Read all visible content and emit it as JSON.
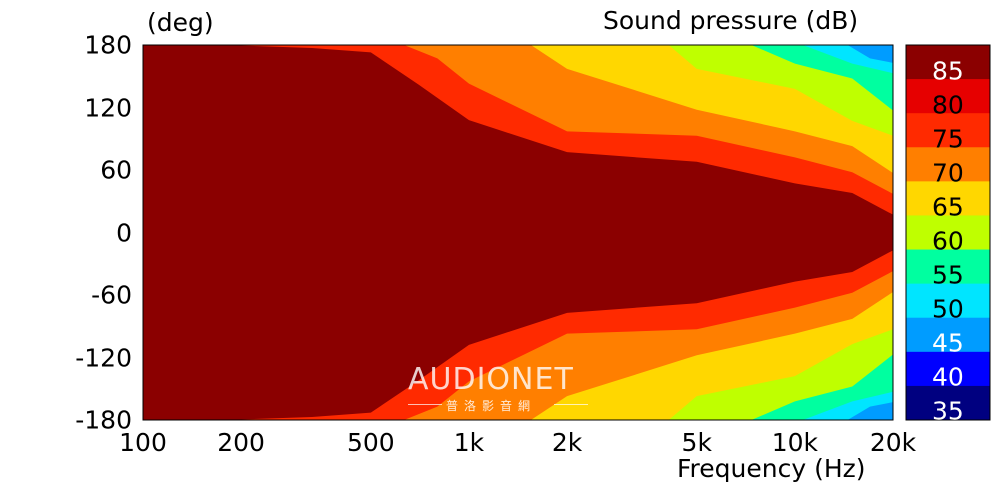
{
  "chart_data": {
    "type": "heatmap",
    "title": "",
    "xlabel": "Frequency  (Hz)",
    "ylabel": "(deg)",
    "colorbar_label": "Sound pressure  (dB)",
    "x_scale": "log",
    "xlim": [
      100,
      20000
    ],
    "ylim": [
      -180,
      180
    ],
    "x_ticks": [
      100,
      200,
      500,
      1000,
      2000,
      5000,
      10000,
      20000
    ],
    "x_tick_labels": [
      "100",
      "200",
      "500",
      "1k",
      "2k",
      "5k",
      "10k",
      "20k"
    ],
    "y_ticks": [
      180,
      120,
      60,
      0,
      -60,
      -120,
      -180
    ],
    "y_tick_labels": [
      "180",
      "120",
      "60",
      "0",
      "-60",
      "-120",
      "-180"
    ],
    "colorbar": {
      "levels": [
        85,
        80,
        75,
        70,
        65,
        60,
        55,
        50,
        45,
        40,
        35
      ],
      "labels": [
        "85",
        "80",
        "75",
        "70",
        "65",
        "60",
        "55",
        "50",
        "45",
        "40",
        "35"
      ],
      "colors": [
        "#8b0000",
        "#e60000",
        "#ff2a00",
        "#ff7f00",
        "#ffd700",
        "#bfff00",
        "#00ffa0",
        "#00e5ff",
        "#009cff",
        "#0000ff",
        "#000080"
      ]
    },
    "contour_bands": [
      {
        "level_db": 80,
        "color": "#ff2a00",
        "points_freq_hz": [
          100,
          330,
          500,
          700,
          1000,
          2000,
          5000,
          10000,
          15000,
          20000
        ],
        "half_width_deg": [
          180,
          180,
          170,
          145,
          105,
          80,
          65,
          50,
          35,
          20
        ]
      },
      {
        "level_db": 75,
        "color": "#ff7f00",
        "points_freq_hz": [
          600,
          800,
          1000,
          2000,
          5000,
          10000,
          15000,
          20000
        ],
        "half_width_deg": [
          180,
          170,
          140,
          100,
          90,
          75,
          55,
          40
        ]
      },
      {
        "level_db": 70,
        "color": "#ffd700",
        "points_freq_hz": [
          1500,
          2000,
          5000,
          10000,
          15000,
          20000
        ],
        "half_width_deg": [
          180,
          160,
          115,
          100,
          80,
          60
        ]
      },
      {
        "level_db": 65,
        "color": "#bfff00",
        "points_freq_hz": [
          4000,
          5000,
          10000,
          15000,
          20000
        ],
        "half_width_deg": [
          180,
          160,
          135,
          110,
          90
        ]
      },
      {
        "level_db": 60,
        "color": "#00ffa0",
        "points_freq_hz": [
          7000,
          10000,
          15000,
          20000
        ],
        "half_width_deg": [
          180,
          165,
          145,
          120
        ]
      },
      {
        "level_db": 55,
        "color": "#00e5ff",
        "points_freq_hz": [
          10000,
          15000,
          20000
        ],
        "half_width_deg": [
          180,
          165,
          150
        ]
      },
      {
        "level_db": 50,
        "color": "#009cff",
        "points_freq_hz": [
          14000,
          17000,
          20000
        ],
        "half_width_deg": [
          180,
          170,
          160
        ]
      }
    ]
  },
  "watermark": {
    "main": "AUDIONET",
    "sub": "普洛影音網"
  }
}
